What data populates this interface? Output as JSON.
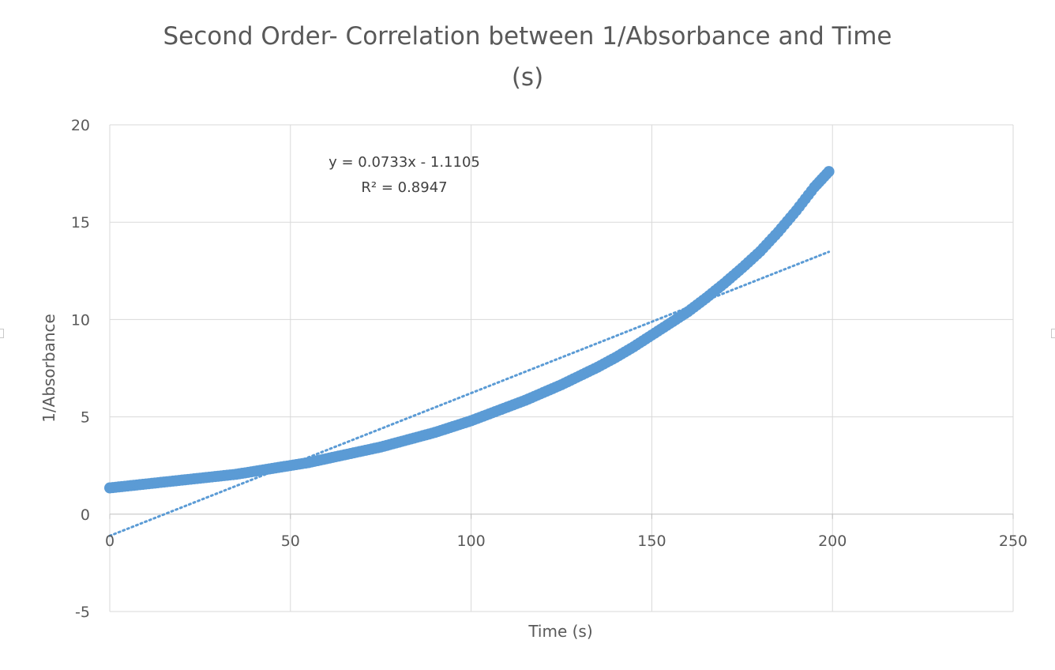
{
  "chart_data": {
    "type": "scatter",
    "title": "Second Order- Correlation between 1/Absorbance and Time (s)",
    "title_lines": [
      "Second Order- Correlation between 1/Absorbance and Time",
      "(s)"
    ],
    "xlabel": "Time (s)",
    "ylabel": "1/Absorbance",
    "xlim": [
      0,
      250
    ],
    "ylim": [
      -5,
      20
    ],
    "x_ticks": [
      "0",
      "50",
      "100",
      "150",
      "200",
      "250"
    ],
    "y_ticks": [
      "-5",
      "0",
      "5",
      "10",
      "15",
      "20"
    ],
    "grid": true,
    "legend": "none",
    "series": [
      {
        "color": "#5b9bd5",
        "marker": "circle",
        "x": [
          0,
          5,
          10,
          15,
          20,
          25,
          30,
          35,
          40,
          45,
          50,
          55,
          60,
          65,
          70,
          75,
          80,
          85,
          90,
          95,
          100,
          105,
          110,
          115,
          120,
          125,
          130,
          135,
          140,
          145,
          150,
          155,
          160,
          165,
          170,
          175,
          180,
          185,
          190,
          195,
          199
        ],
        "y": [
          1.35,
          1.45,
          1.55,
          1.65,
          1.75,
          1.85,
          1.95,
          2.05,
          2.2,
          2.35,
          2.5,
          2.65,
          2.85,
          3.05,
          3.25,
          3.45,
          3.7,
          3.95,
          4.2,
          4.5,
          4.8,
          5.15,
          5.5,
          5.85,
          6.25,
          6.65,
          7.1,
          7.55,
          8.05,
          8.6,
          9.2,
          9.8,
          10.4,
          11.1,
          11.85,
          12.65,
          13.5,
          14.5,
          15.6,
          16.8,
          17.6
        ]
      }
    ],
    "trendline": {
      "type": "linear",
      "slope": 0.0733,
      "intercept": -1.1105,
      "x_range": [
        0,
        199
      ],
      "color": "#5b9bd5",
      "style": "dotted",
      "equation": "y = 0.0733x - 1.1105",
      "r_squared": "R² = 0.8947"
    }
  }
}
